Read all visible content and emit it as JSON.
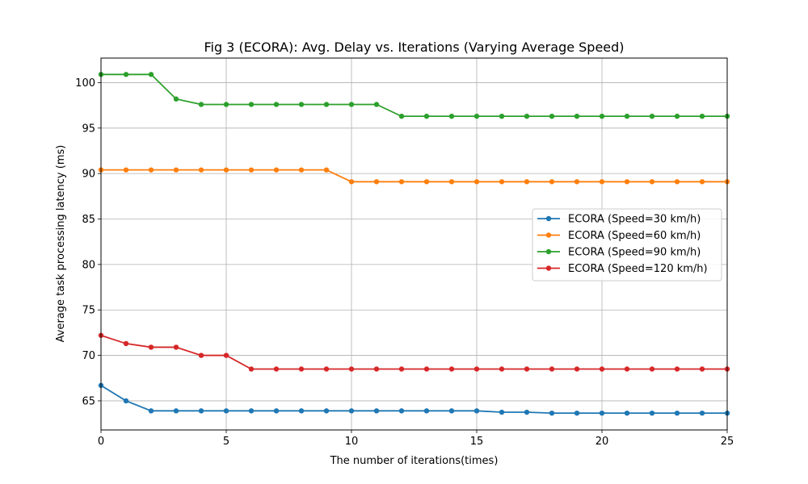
{
  "chart_data": {
    "type": "line",
    "title": "Fig 3 (ECORA): Avg. Delay vs. Iterations (Varying Average Speed)",
    "xlabel": "The number of iterations(times)",
    "ylabel": "Average task processing latency (ms)",
    "xlim": [
      0,
      25
    ],
    "ylim": [
      61.8,
      102.7
    ],
    "xticks": [
      0,
      5,
      10,
      15,
      20,
      25
    ],
    "yticks": [
      65,
      70,
      75,
      80,
      85,
      90,
      95,
      100
    ],
    "grid": true,
    "legend_position": "center-right",
    "x": [
      0,
      1,
      2,
      3,
      4,
      5,
      6,
      7,
      8,
      9,
      10,
      11,
      12,
      13,
      14,
      15,
      16,
      17,
      18,
      19,
      20,
      21,
      22,
      23,
      24,
      25
    ],
    "series": [
      {
        "name": "ECORA (Speed=30 km/h)",
        "color": "#1f77b4",
        "values": [
          66.7,
          65.0,
          63.9,
          63.9,
          63.9,
          63.9,
          63.9,
          63.9,
          63.9,
          63.9,
          63.9,
          63.9,
          63.9,
          63.9,
          63.9,
          63.9,
          63.75,
          63.75,
          63.65,
          63.65,
          63.65,
          63.65,
          63.65,
          63.65,
          63.65,
          63.65
        ]
      },
      {
        "name": "ECORA (Speed=60 km/h)",
        "color": "#ff7f0e",
        "values": [
          90.4,
          90.4,
          90.4,
          90.4,
          90.4,
          90.4,
          90.4,
          90.4,
          90.4,
          90.4,
          89.1,
          89.1,
          89.1,
          89.1,
          89.1,
          89.1,
          89.1,
          89.1,
          89.1,
          89.1,
          89.1,
          89.1,
          89.1,
          89.1,
          89.1,
          89.1
        ]
      },
      {
        "name": "ECORA (Speed=90 km/h)",
        "color": "#2ca02c",
        "values": [
          100.9,
          100.9,
          100.9,
          98.2,
          97.6,
          97.6,
          97.6,
          97.6,
          97.6,
          97.6,
          97.6,
          97.6,
          96.3,
          96.3,
          96.3,
          96.3,
          96.3,
          96.3,
          96.3,
          96.3,
          96.3,
          96.3,
          96.3,
          96.3,
          96.3,
          96.3
        ]
      },
      {
        "name": "ECORA (Speed=120 km/h)",
        "color": "#d62728",
        "values": [
          72.2,
          71.3,
          70.9,
          70.9,
          70.0,
          70.0,
          68.5,
          68.5,
          68.5,
          68.5,
          68.5,
          68.5,
          68.5,
          68.5,
          68.5,
          68.5,
          68.5,
          68.5,
          68.5,
          68.5,
          68.5,
          68.5,
          68.5,
          68.5,
          68.5,
          68.5
        ]
      }
    ]
  }
}
